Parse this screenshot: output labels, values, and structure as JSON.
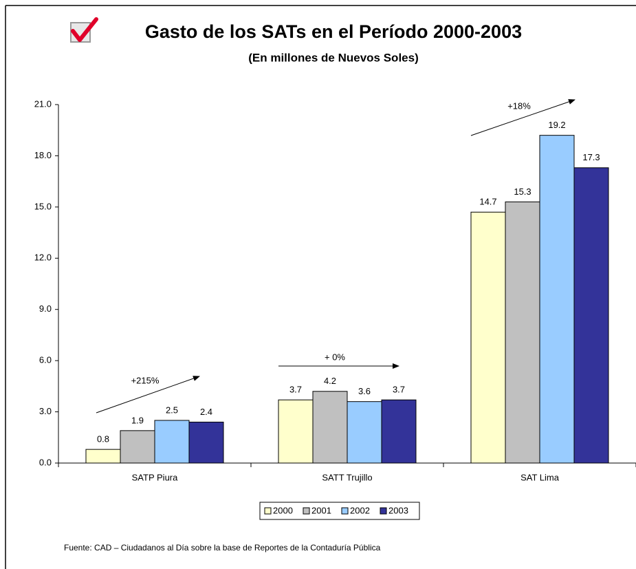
{
  "chart_data": {
    "type": "bar",
    "title": "Gasto de los SATs en el Período 2000-2003",
    "subtitle": "(En millones de Nuevos Soles)",
    "categories": [
      "SATP Piura",
      "SATT Trujillo",
      "SAT Lima"
    ],
    "series": [
      {
        "name": "2000",
        "color": "#ffffcc",
        "values": [
          0.8,
          3.7,
          14.7
        ]
      },
      {
        "name": "2001",
        "color": "#c0c0c0",
        "values": [
          1.9,
          4.2,
          15.3
        ]
      },
      {
        "name": "2002",
        "color": "#99ccff",
        "values": [
          2.5,
          3.6,
          19.2
        ]
      },
      {
        "name": "2003",
        "color": "#333399",
        "values": [
          2.4,
          3.7,
          17.3
        ]
      }
    ],
    "ylim": [
      0,
      21
    ],
    "yticks": [
      {
        "value": 0,
        "label": "0.0"
      },
      {
        "value": 3,
        "label": "3.0"
      },
      {
        "value": 6,
        "label": "6.0"
      },
      {
        "value": 9,
        "label": "9.0"
      },
      {
        "value": 12,
        "label": "12.0"
      },
      {
        "value": 15,
        "label": "15.0"
      },
      {
        "value": 18,
        "label": "18.0"
      },
      {
        "value": 21,
        "label": "21.0"
      }
    ],
    "annotations": [
      "+215%",
      "+ 0%",
      "+18%"
    ],
    "legend": "bottom",
    "source": "Fuente: CAD – Ciudadanos al Día sobre la base de Reportes de la Contaduría Pública"
  }
}
